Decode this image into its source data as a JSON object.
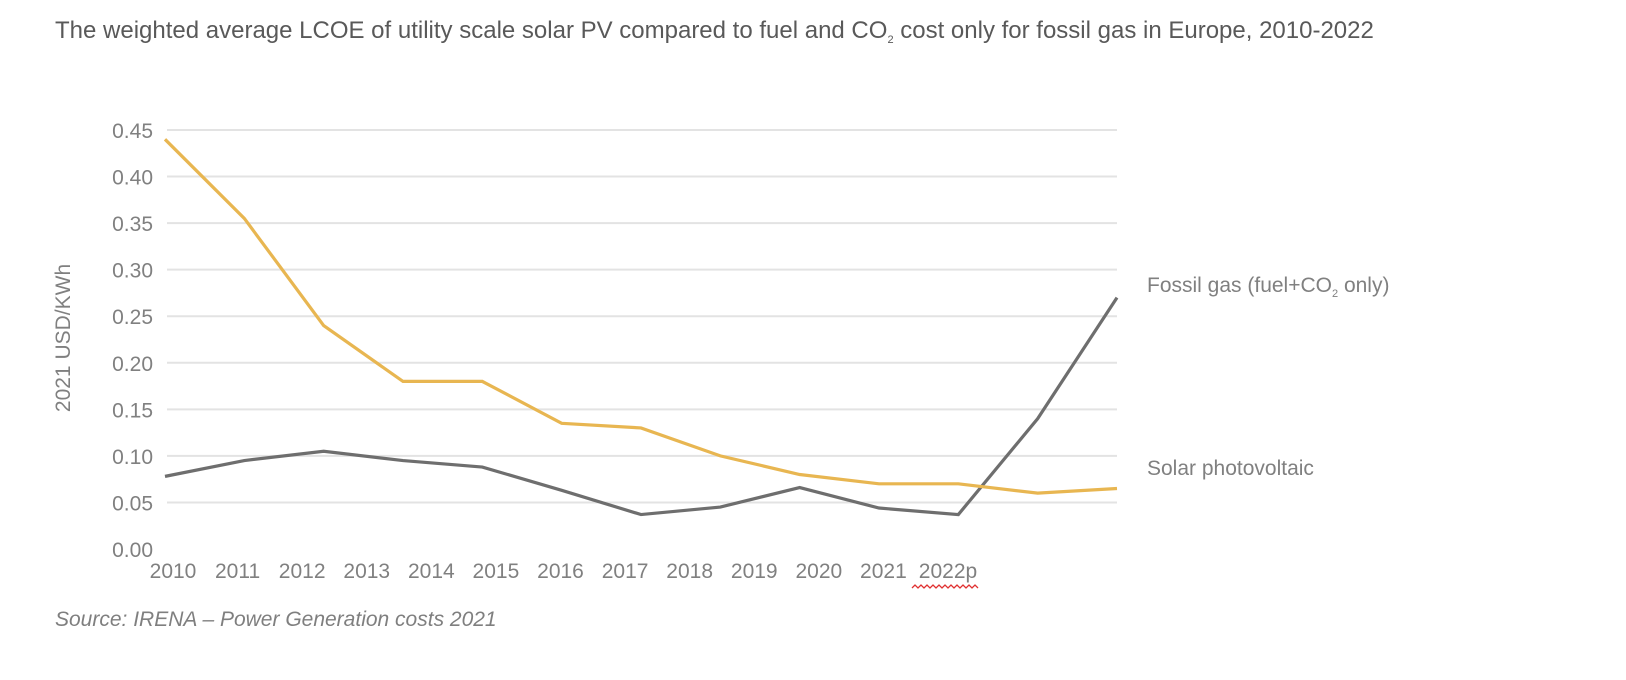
{
  "title": {
    "part1": "The weighted average LCOE of utility scale solar PV compared to fuel and CO",
    "sub": "2",
    "part2": " cost only for fossil gas in Europe, 2010-2022"
  },
  "source": "Source: IRENA – Power Generation costs 2021",
  "chart_data": {
    "type": "line",
    "categories": [
      "2010",
      "2011",
      "2012",
      "2013",
      "2014",
      "2015",
      "2016",
      "2017",
      "2018",
      "2019",
      "2020",
      "2021",
      "2022p"
    ],
    "ylabel": "2021 USD/KWh",
    "ylim": [
      0,
      0.45
    ],
    "yticks": [
      "0.00",
      "0.05",
      "0.10",
      "0.15",
      "0.20",
      "0.25",
      "0.30",
      "0.35",
      "0.40",
      "0.45"
    ],
    "grid": true,
    "legend_placement": "right (inline labels)",
    "series": [
      {
        "name": "Fossil gas (fuel+CO2 only)",
        "label_parts": {
          "a": "Fossil gas (fuel+CO",
          "sub": "2",
          "b": " only)"
        },
        "color": "#6E6E6E",
        "values": [
          0.078,
          0.095,
          0.105,
          0.095,
          0.088,
          0.063,
          0.037,
          0.045,
          0.066,
          0.044,
          0.037,
          0.14,
          0.27
        ]
      },
      {
        "name": "Solar photovoltaic",
        "color": "#E8B651",
        "values": [
          0.44,
          0.355,
          0.24,
          0.18,
          0.18,
          0.135,
          0.13,
          0.1,
          0.08,
          0.07,
          0.07,
          0.06,
          0.065
        ]
      }
    ]
  }
}
